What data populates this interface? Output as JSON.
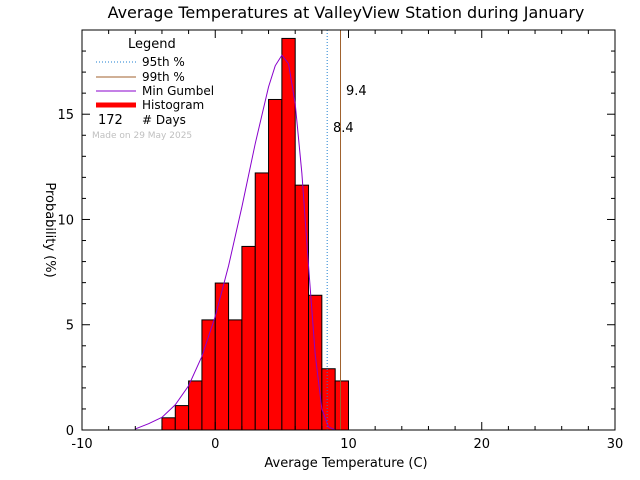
{
  "chart_data": {
    "type": "bar",
    "title": "Average Temperatures at ValleyView Station during January",
    "xlabel": "Average Temperature (C)",
    "ylabel": "Probability (%)",
    "xlim": [
      -10,
      30
    ],
    "ylim": [
      0,
      19
    ],
    "x_ticks": [
      -10,
      0,
      10,
      20,
      30
    ],
    "y_ticks": [
      0,
      5,
      10,
      15
    ],
    "bin_width": 1,
    "bins": [
      {
        "x": -4,
        "value": 0.58
      },
      {
        "x": -3,
        "value": 1.16
      },
      {
        "x": -2,
        "value": 2.33
      },
      {
        "x": -1,
        "value": 5.23
      },
      {
        "x": 0,
        "value": 6.98
      },
      {
        "x": 1,
        "value": 5.23
      },
      {
        "x": 2,
        "value": 8.72
      },
      {
        "x": 3,
        "value": 12.21
      },
      {
        "x": 4,
        "value": 15.7
      },
      {
        "x": 5,
        "value": 18.6
      },
      {
        "x": 6,
        "value": 11.63
      },
      {
        "x": 7,
        "value": 6.4
      },
      {
        "x": 8,
        "value": 2.91
      },
      {
        "x": 9,
        "value": 2.33
      }
    ],
    "gumbel_curve": {
      "name": "Min Gumbel",
      "x": [
        -6.0,
        -5.0,
        -4.0,
        -3.0,
        -2.0,
        -1.0,
        0.0,
        1.0,
        2.0,
        3.0,
        4.0,
        4.5,
        5.0,
        5.5,
        6.0,
        6.5,
        7.0,
        7.5,
        8.0,
        8.5,
        9.0,
        9.5
      ],
      "y": [
        0.05,
        0.3,
        0.6,
        1.2,
        2.1,
        3.5,
        5.4,
        7.8,
        10.6,
        13.6,
        16.3,
        17.3,
        17.8,
        17.4,
        15.5,
        12.2,
        7.8,
        3.6,
        1.0,
        0.15,
        0.0,
        0.0
      ]
    },
    "percentile_95": 8.4,
    "percentile_99": 9.4,
    "days": 172,
    "colors": {
      "histogram": "#ff0000",
      "gumbel": "#8800cc",
      "p95": "#1e7fd0",
      "p99": "#a0622d"
    }
  },
  "legend": {
    "title": "Legend",
    "p95_label": "95th %",
    "p99_label": "99th %",
    "gumbel_label": "Min Gumbel",
    "histogram_label": "Histogram",
    "days_value": "172",
    "days_label": "# Days",
    "credit": "Made on 29 May 2025"
  },
  "annotations": {
    "p95_text": "8.4",
    "p99_text": "9.4"
  }
}
